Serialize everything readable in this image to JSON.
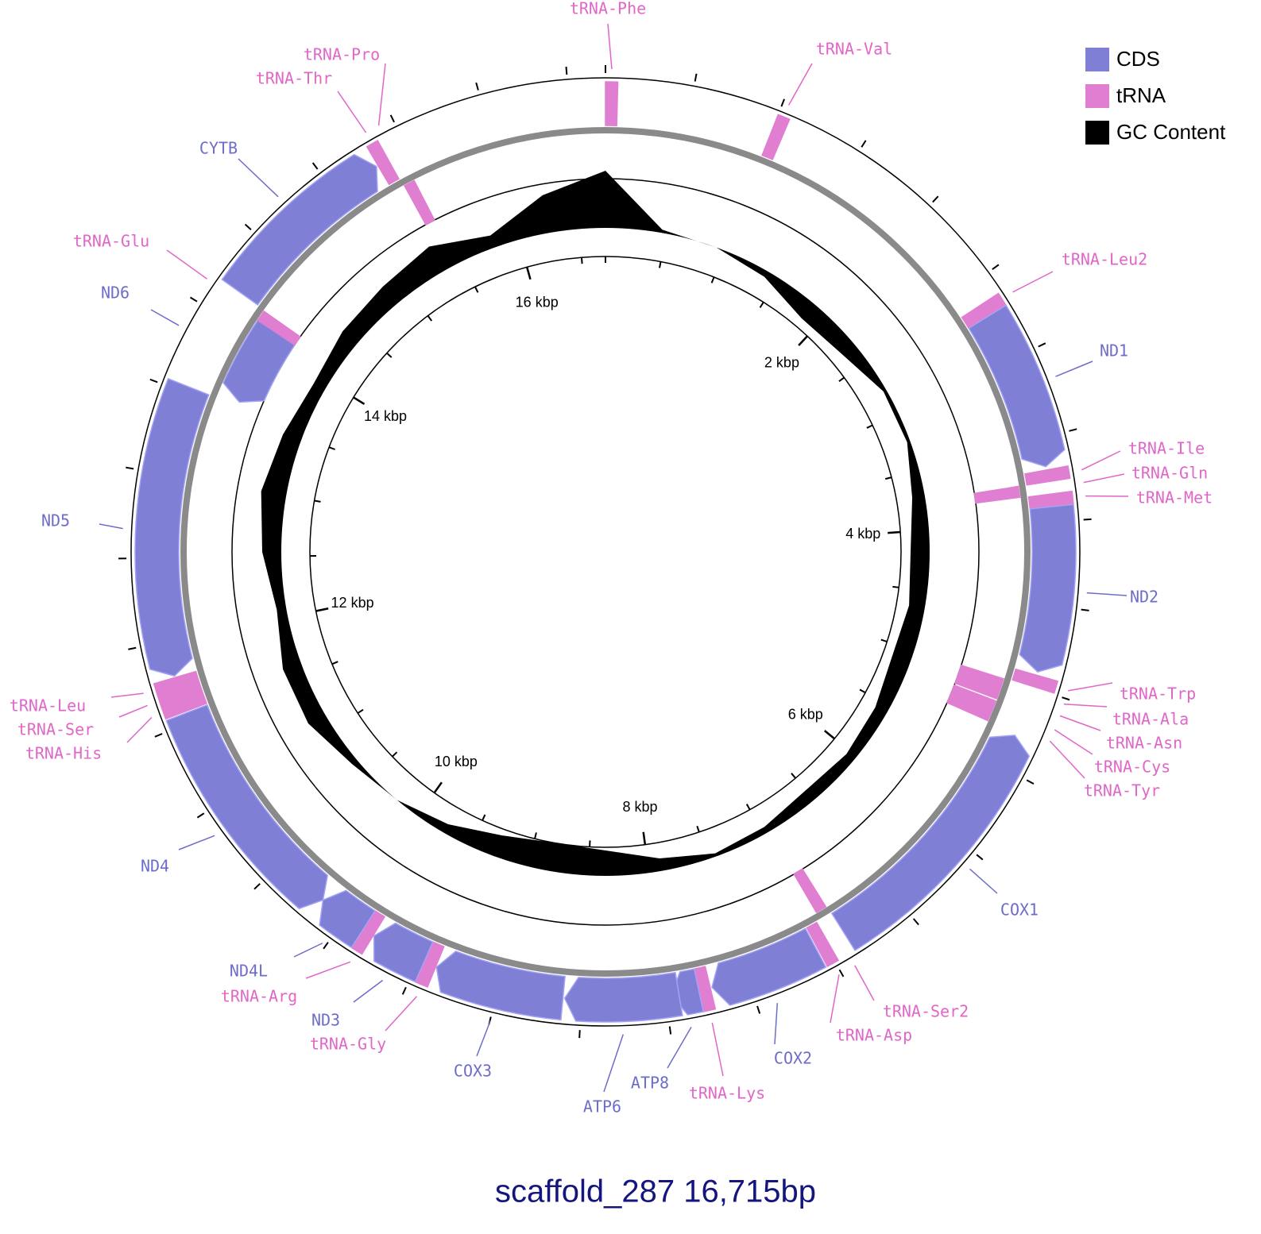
{
  "title": "scaffold_287 16,715bp",
  "length": 16715,
  "legend": [
    {
      "label": "CDS",
      "color": "#7f7fd6"
    },
    {
      "label": "tRNA",
      "color": "#e07fd2"
    },
    {
      "label": "GC Content",
      "color": "#000000"
    }
  ],
  "features": [
    {
      "name": "tRNA-Phe",
      "type": "tRNA",
      "ring": "outer",
      "start": 0,
      "end": 70
    },
    {
      "name": "tRNA-Val",
      "type": "tRNA",
      "ring": "outer",
      "start": 1000,
      "end": 1070
    },
    {
      "name": "tRNA-Leu2",
      "type": "tRNA",
      "ring": "outer",
      "start": 2630,
      "end": 2705
    },
    {
      "name": "ND1",
      "type": "CDS",
      "ring": "outer",
      "strand": "+",
      "start": 2710,
      "end": 3670
    },
    {
      "name": "tRNA-Ile",
      "type": "tRNA",
      "ring": "outer",
      "start": 3690,
      "end": 3760
    },
    {
      "name": "tRNA-Gln",
      "type": "tRNA",
      "ring": "inner",
      "start": 3760,
      "end": 3830
    },
    {
      "name": "tRNA-Met",
      "type": "tRNA",
      "ring": "outer",
      "start": 3835,
      "end": 3905
    },
    {
      "name": "ND2",
      "type": "CDS",
      "ring": "outer",
      "strand": "+",
      "start": 3910,
      "end": 4900
    },
    {
      "name": "tRNA-Trp",
      "type": "tRNA",
      "ring": "outer",
      "start": 4920,
      "end": 4990
    },
    {
      "name": "tRNA-Ala",
      "type": "tRNA",
      "ring": "inner",
      "start": 5000,
      "end": 5065
    },
    {
      "name": "tRNA-Asn",
      "type": "tRNA",
      "ring": "inner",
      "start": 5065,
      "end": 5135
    },
    {
      "name": "tRNA-Cys",
      "type": "tRNA",
      "ring": "inner",
      "start": 5150,
      "end": 5215
    },
    {
      "name": "tRNA-Tyr",
      "type": "tRNA",
      "ring": "inner",
      "start": 5215,
      "end": 5285
    },
    {
      "name": "COX1",
      "type": "CDS",
      "ring": "outer",
      "strand": "-",
      "start": 5300,
      "end": 6870
    },
    {
      "name": "tRNA-Ser2",
      "type": "tRNA",
      "ring": "inner",
      "start": 6880,
      "end": 6950
    },
    {
      "name": "tRNA-Asp",
      "type": "tRNA",
      "ring": "outer",
      "start": 6980,
      "end": 7050
    },
    {
      "name": "COX2",
      "type": "CDS",
      "ring": "outer",
      "strand": "+",
      "start": 7060,
      "end": 7720
    },
    {
      "name": "tRNA-Lys",
      "type": "tRNA",
      "ring": "outer",
      "start": 7730,
      "end": 7800
    },
    {
      "name": "ATP8",
      "type": "CDS",
      "ring": "outer",
      "strand": "+",
      "start": 7800,
      "end": 7965
    },
    {
      "name": "ATP6",
      "type": "CDS",
      "ring": "outer",
      "strand": "+",
      "start": 7920,
      "end": 8600
    },
    {
      "name": "COX3",
      "type": "CDS",
      "ring": "outer",
      "strand": "+",
      "start": 8610,
      "end": 9385
    },
    {
      "name": "tRNA-Gly",
      "type": "tRNA",
      "ring": "outer",
      "start": 9390,
      "end": 9460
    },
    {
      "name": "ND3",
      "type": "CDS",
      "ring": "outer",
      "strand": "+",
      "start": 9465,
      "end": 9800
    },
    {
      "name": "tRNA-Arg",
      "type": "tRNA",
      "ring": "outer",
      "start": 9805,
      "end": 9870
    },
    {
      "name": "ND4L",
      "type": "CDS",
      "ring": "outer",
      "strand": "+",
      "start": 9875,
      "end": 10170
    },
    {
      "name": "ND4",
      "type": "CDS",
      "ring": "outer",
      "strand": "-",
      "start": 10170,
      "end": 11560
    },
    {
      "name": "tRNA-His",
      "type": "tRNA",
      "ring": "outer",
      "start": 11570,
      "end": 11640
    },
    {
      "name": "tRNA-Ser",
      "type": "tRNA",
      "ring": "outer",
      "start": 11640,
      "end": 11710
    },
    {
      "name": "tRNA-Leu",
      "type": "tRNA",
      "ring": "outer",
      "start": 11710,
      "end": 11780
    },
    {
      "name": "ND5",
      "type": "CDS",
      "ring": "outer",
      "strand": "-",
      "start": 11790,
      "end": 13540
    },
    {
      "name": "ND6",
      "type": "CDS",
      "ring": "inner",
      "strand": "-",
      "start": 13570,
      "end": 14100
    },
    {
      "name": "tRNA-Glu",
      "type": "tRNA",
      "ring": "inner",
      "start": 14100,
      "end": 14170
    },
    {
      "name": "CYTB",
      "type": "CDS",
      "ring": "outer",
      "strand": "+",
      "start": 14180,
      "end": 15290
    },
    {
      "name": "tRNA-Thr",
      "type": "tRNA",
      "ring": "outer",
      "start": 15300,
      "end": 15370
    },
    {
      "name": "tRNA-Pro",
      "type": "tRNA",
      "ring": "inner",
      "start": 15380,
      "end": 15450
    }
  ],
  "ruler": {
    "ticks": [
      0,
      500,
      1000,
      1500,
      2000,
      2500,
      3000,
      3500,
      4000,
      4500,
      5000,
      5500,
      6000,
      6500,
      7000,
      7500,
      8000,
      8500,
      9000,
      9500,
      10000,
      10500,
      11000,
      11500,
      12000,
      12500,
      13000,
      13500,
      14000,
      14500,
      15000,
      15500,
      16000,
      16500
    ],
    "labels": [
      {
        "value": 2000,
        "label": "2 kbp"
      },
      {
        "value": 4000,
        "label": "4 kbp"
      },
      {
        "value": 6000,
        "label": "6 kbp"
      },
      {
        "value": 8000,
        "label": "8 kbp"
      },
      {
        "value": 10000,
        "label": "10 kbp"
      },
      {
        "value": 12000,
        "label": "12 kbp"
      },
      {
        "value": 14000,
        "label": "14 kbp"
      },
      {
        "value": 16000,
        "label": "16 kbp"
      }
    ]
  },
  "gc_content": {
    "values": [
      0.9,
      0.05,
      0,
      -0.1,
      -0.3,
      -0.25,
      -0.05,
      -0.05,
      -0.2,
      -0.3,
      -0.25,
      -0.3,
      -0.2,
      -0.15,
      -0.2,
      -0.1,
      -0.05,
      -0.2,
      -0.4,
      -0.45,
      -0.35,
      -0.15,
      0,
      0.1,
      0.3,
      0.3,
      0.15,
      0.3,
      0.4,
      0.3,
      0.2,
      0.3,
      0.35,
      0.45,
      0.2,
      0.6
    ]
  }
}
